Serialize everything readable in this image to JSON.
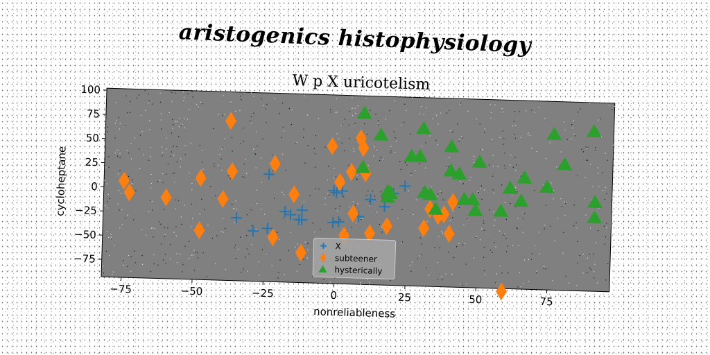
{
  "suptitle": "aristogenics histophysiology",
  "chart_data": {
    "type": "scatter",
    "title": "W p X uricotelism",
    "xlabel": "nonreliableness",
    "ylabel": "cycloheptane",
    "xlim": [
      -82,
      97
    ],
    "ylim": [
      -93,
      102
    ],
    "xticks": [
      -75,
      -50,
      -25,
      0,
      25,
      50,
      75
    ],
    "yticks": [
      100,
      75,
      50,
      25,
      0,
      -25,
      -50,
      -75
    ],
    "grid": false,
    "legend_position": "lower center",
    "colors": {
      "plot_bg": "#808080",
      "series": [
        "#1f77b4",
        "#ff7f0e",
        "#2ca02c"
      ]
    },
    "series": [
      {
        "name": "X",
        "marker": "plus",
        "points": [
          [
            -24,
            18
          ],
          [
            -35,
            -28
          ],
          [
            -29,
            -41
          ],
          [
            -24,
            -38
          ],
          [
            -18,
            -20
          ],
          [
            -16,
            -23
          ],
          [
            -13,
            -28
          ],
          [
            -12,
            -18
          ],
          [
            -12,
            -28
          ],
          [
            -1,
            3
          ],
          [
            0,
            1
          ],
          [
            2,
            3
          ],
          [
            -1,
            -30
          ],
          [
            1,
            -29
          ],
          [
            8,
            -23
          ],
          [
            12,
            -5
          ],
          [
            17,
            -12
          ],
          [
            20,
            2
          ],
          [
            24,
            10
          ]
        ]
      },
      {
        "name": "subteener",
        "marker": "diamond",
        "points": [
          [
            -75,
            7
          ],
          [
            -73,
            -5
          ],
          [
            -60,
            -9
          ],
          [
            -48,
            12
          ],
          [
            -48,
            -42
          ],
          [
            -40,
            -9
          ],
          [
            -38,
            72
          ],
          [
            -37,
            20
          ],
          [
            -22,
            29
          ],
          [
            -22,
            -47
          ],
          [
            -15,
            -2
          ],
          [
            -12,
            -62
          ],
          [
            -2,
            49
          ],
          [
            1,
            12
          ],
          [
            3,
            -43
          ],
          [
            5,
            23
          ],
          [
            6,
            -20
          ],
          [
            8,
            58
          ],
          [
            9,
            48
          ],
          [
            10,
            22
          ],
          [
            12,
            -40
          ],
          [
            18,
            -32
          ],
          [
            31,
            -33
          ],
          [
            33,
            -13
          ],
          [
            36,
            -20
          ],
          [
            38,
            -18
          ],
          [
            40,
            -38
          ],
          [
            41,
            -5
          ],
          [
            59,
            -96
          ]
        ]
      },
      {
        "name": "hysterically",
        "marker": "triangle",
        "points": [
          [
            9,
            84
          ],
          [
            9,
            28
          ],
          [
            15,
            62
          ],
          [
            18,
            4
          ],
          [
            18,
            -2
          ],
          [
            19,
            2
          ],
          [
            26,
            41
          ],
          [
            29,
            41
          ],
          [
            30,
            70
          ],
          [
            31,
            4
          ],
          [
            33,
            2
          ],
          [
            35,
            -13
          ],
          [
            40,
            52
          ],
          [
            40,
            27
          ],
          [
            43,
            24
          ],
          [
            45,
            -2
          ],
          [
            48,
            -2
          ],
          [
            49,
            -13
          ],
          [
            50,
            37
          ],
          [
            58,
            -13
          ],
          [
            61,
            11
          ],
          [
            65,
            -2
          ],
          [
            66,
            22
          ],
          [
            74,
            13
          ],
          [
            76,
            68
          ],
          [
            80,
            37
          ],
          [
            90,
            72
          ],
          [
            91,
            -1
          ],
          [
            91,
            -17
          ]
        ]
      }
    ]
  }
}
